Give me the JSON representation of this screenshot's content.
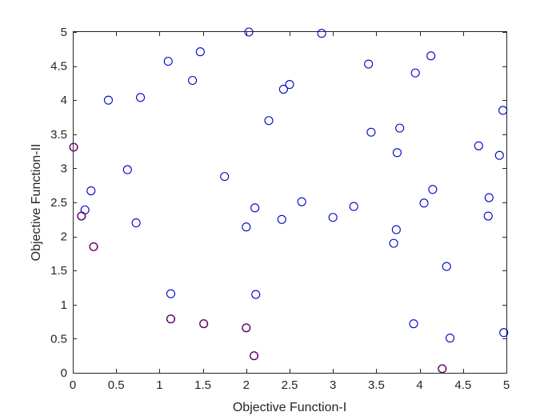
{
  "chart_data": {
    "type": "scatter",
    "title": "",
    "xlabel": "Objective Function-I",
    "ylabel": "Objective Function-II",
    "xlim": [
      0,
      5
    ],
    "ylim": [
      0,
      5
    ],
    "xticks": [
      "0",
      "0.5",
      "1",
      "1.5",
      "2",
      "2.5",
      "3",
      "3.5",
      "4",
      "4.5",
      "5"
    ],
    "yticks": [
      "0",
      "0.5",
      "1",
      "1.5",
      "2",
      "2.5",
      "3",
      "3.5",
      "4",
      "4.5",
      "5"
    ],
    "grid": true,
    "colors": {
      "population": "#0000cc",
      "pareto": "#a00020",
      "axis": "#262626",
      "grid": "#dfdfdf"
    },
    "series": [
      {
        "marker": "open-circle",
        "points": [
          [
            0.01,
            3.31
          ],
          [
            0.1,
            2.3
          ],
          [
            0.14,
            2.39
          ],
          [
            0.21,
            2.67
          ],
          [
            0.24,
            1.85
          ],
          [
            0.41,
            4.0
          ],
          [
            0.63,
            2.98
          ],
          [
            0.73,
            2.2
          ],
          [
            0.78,
            4.04
          ],
          [
            1.1,
            4.57
          ],
          [
            1.13,
            1.16
          ],
          [
            1.13,
            0.79
          ],
          [
            1.38,
            4.29
          ],
          [
            1.47,
            4.71
          ],
          [
            1.51,
            0.72
          ],
          [
            1.75,
            2.88
          ],
          [
            2.0,
            2.14
          ],
          [
            2.0,
            0.66
          ],
          [
            2.03,
            5.0
          ],
          [
            2.09,
            0.25
          ],
          [
            2.1,
            2.42
          ],
          [
            2.11,
            1.15
          ],
          [
            2.26,
            3.7
          ],
          [
            2.41,
            2.25
          ],
          [
            2.43,
            4.16
          ],
          [
            2.5,
            4.23
          ],
          [
            2.64,
            2.51
          ],
          [
            2.87,
            4.98
          ],
          [
            3.0,
            2.28
          ],
          [
            3.24,
            2.44
          ],
          [
            3.41,
            4.53
          ],
          [
            3.44,
            3.53
          ],
          [
            3.7,
            1.9
          ],
          [
            3.73,
            2.1
          ],
          [
            3.74,
            3.23
          ],
          [
            3.77,
            3.59
          ],
          [
            3.93,
            0.72
          ],
          [
            3.95,
            4.4
          ],
          [
            4.05,
            2.49
          ],
          [
            4.13,
            4.65
          ],
          [
            4.15,
            2.69
          ],
          [
            4.26,
            0.06
          ],
          [
            4.31,
            1.56
          ],
          [
            4.35,
            0.51
          ],
          [
            4.68,
            3.33
          ],
          [
            4.79,
            2.3
          ],
          [
            4.8,
            2.57
          ],
          [
            4.92,
            3.19
          ],
          [
            4.96,
            3.85
          ],
          [
            4.97,
            0.59
          ]
        ]
      },
      {
        "marker": "dashed-circle",
        "points": [
          [
            0.01,
            3.31
          ],
          [
            0.1,
            2.3
          ],
          [
            0.24,
            1.85
          ],
          [
            1.13,
            0.79
          ],
          [
            1.51,
            0.72
          ],
          [
            2.0,
            0.66
          ],
          [
            2.09,
            0.25
          ],
          [
            4.26,
            0.06
          ]
        ]
      }
    ]
  }
}
